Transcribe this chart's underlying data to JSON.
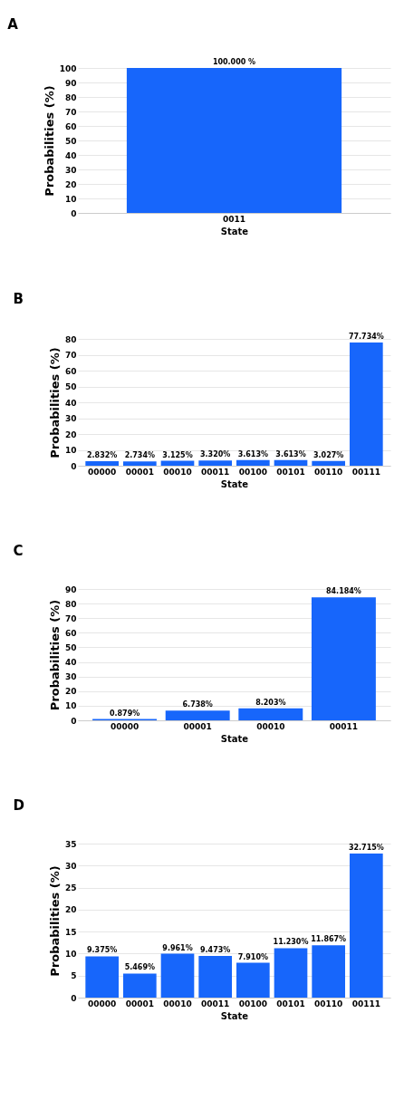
{
  "chart_data": [
    {
      "type": "bar",
      "title": "A",
      "xlabel": "State",
      "ylabel": "Probabilities (%)",
      "categories": [
        "0011"
      ],
      "values": [
        100
      ],
      "value_labels": [
        "100.000 %"
      ],
      "color": "#1766fb",
      "ylim": [
        0,
        100
      ],
      "yticks": [
        0,
        10,
        20,
        30,
        40,
        50,
        60,
        70,
        80,
        90,
        100
      ],
      "grid": "y"
    },
    {
      "type": "bar",
      "title": "B",
      "xlabel": "State",
      "ylabel": "Probabilities (%)",
      "categories": [
        "00000",
        "00001",
        "00010",
        "00011",
        "00100",
        "00101",
        "00110",
        "00111"
      ],
      "values": [
        2.832,
        2.734,
        3.125,
        3.32,
        3.613,
        3.613,
        3.027,
        77.734
      ],
      "value_labels": [
        "2.832%",
        "2.734%",
        "3.125%",
        "3.320%",
        "3.613%",
        "3.613%",
        "3.027%",
        "77.734%"
      ],
      "color": "#1766fb",
      "ylim": [
        0,
        80
      ],
      "yticks": [
        0,
        10,
        20,
        30,
        40,
        50,
        60,
        70,
        80
      ],
      "grid": "y"
    },
    {
      "type": "bar",
      "title": "C",
      "xlabel": "State",
      "ylabel": "Probabilities (%)",
      "categories": [
        "00000",
        "00001",
        "00010",
        "00011"
      ],
      "values": [
        0.879,
        6.738,
        8.203,
        84.184
      ],
      "value_labels": [
        "0.879%",
        "6.738%",
        "8.203%",
        "84.184%"
      ],
      "color": "#1766fb",
      "ylim": [
        0,
        90
      ],
      "yticks": [
        0,
        10,
        20,
        30,
        40,
        50,
        60,
        70,
        80,
        90
      ],
      "grid": "y"
    },
    {
      "type": "bar",
      "title": "D",
      "xlabel": "State",
      "ylabel": "Probabilities (%)",
      "categories": [
        "00000",
        "00001",
        "00010",
        "00011",
        "00100",
        "00101",
        "00110",
        "00111"
      ],
      "values": [
        9.375,
        5.469,
        9.961,
        9.473,
        7.91,
        11.23,
        11.867,
        32.715
      ],
      "value_labels": [
        "9.375%",
        "5.469%",
        "9.961%",
        "9.473%",
        "7.910%",
        "11.230%",
        "11.867%",
        "32.715%"
      ],
      "color": "#1766fb",
      "ylim": [
        0,
        35
      ],
      "yticks": [
        0,
        5,
        10,
        15,
        20,
        25,
        30,
        35
      ],
      "grid": "y"
    }
  ]
}
